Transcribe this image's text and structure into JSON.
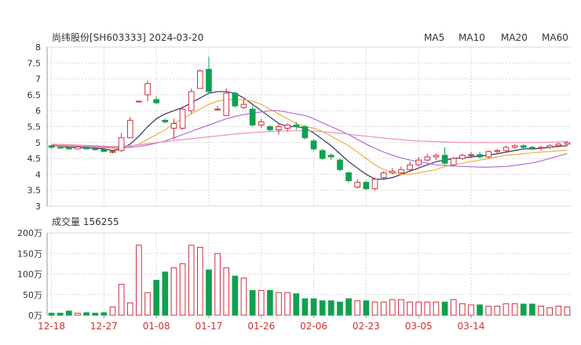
{
  "title": "尚纬股份[SH603333] 2024-03-20",
  "legend": [
    {
      "name": "MA5",
      "color": "#333366"
    },
    {
      "name": "MA10",
      "color": "#f0b040"
    },
    {
      "name": "MA20",
      "color": "#b070d8"
    },
    {
      "name": "MA60",
      "color": "#f090b8"
    }
  ],
  "volume_label": "成交量 156255",
  "colors": {
    "up": "#d03040",
    "down": "#10a050",
    "grid": "#d8d8d8",
    "axis": "#999999"
  },
  "chart_data": [
    {
      "type": "candlestick",
      "yticks": [
        "8",
        "7.5",
        "7",
        "6.5",
        "6",
        "5.5",
        "5",
        "4.5",
        "4",
        "3.5",
        "3"
      ],
      "ylim": [
        3,
        8
      ],
      "x_ticks": [
        "12-18",
        "12-27",
        "01-08",
        "01-17",
        "01-26",
        "02-06",
        "02-23",
        "03-05",
        "03-14"
      ],
      "x_tick_index": [
        0,
        6,
        12,
        18,
        24,
        30,
        36,
        42,
        48
      ],
      "candles": [
        [
          4.9,
          4.92,
          4.85,
          4.8
        ],
        [
          4.85,
          4.88,
          4.83,
          4.82
        ],
        [
          4.85,
          4.87,
          4.8,
          4.79
        ],
        [
          4.8,
          4.85,
          4.86,
          4.78
        ],
        [
          4.85,
          4.88,
          4.8,
          4.79
        ],
        [
          4.8,
          4.82,
          4.78,
          4.75
        ],
        [
          4.78,
          4.8,
          4.72,
          4.7
        ],
        [
          4.7,
          4.75,
          4.72,
          4.65
        ],
        [
          4.75,
          5.3,
          5.15,
          4.7
        ],
        [
          5.15,
          5.8,
          5.7,
          5.15
        ],
        [
          6.3,
          6.32,
          6.3,
          6.28
        ],
        [
          6.5,
          6.95,
          6.85,
          6.3
        ],
        [
          6.35,
          6.45,
          6.25,
          6.2
        ],
        [
          5.7,
          5.75,
          5.65,
          5.6
        ],
        [
          5.45,
          5.75,
          5.6,
          5.1
        ],
        [
          5.45,
          6.1,
          6.05,
          5.4
        ],
        [
          6.0,
          6.7,
          6.6,
          5.9
        ],
        [
          6.7,
          7.3,
          7.25,
          6.7
        ],
        [
          7.3,
          7.7,
          6.6,
          6.55
        ],
        [
          6.05,
          6.15,
          6.05,
          6.0
        ],
        [
          5.85,
          6.7,
          6.55,
          5.85
        ],
        [
          6.55,
          6.6,
          6.15,
          6.1
        ],
        [
          6.1,
          6.35,
          6.2,
          6.05
        ],
        [
          6.05,
          6.15,
          5.55,
          5.5
        ],
        [
          5.55,
          5.75,
          5.65,
          5.45
        ],
        [
          5.5,
          5.55,
          5.4,
          5.35
        ],
        [
          5.4,
          5.6,
          5.5,
          5.25
        ],
        [
          5.45,
          5.6,
          5.55,
          5.35
        ],
        [
          5.55,
          5.65,
          5.5,
          5.4
        ],
        [
          5.5,
          5.55,
          5.15,
          5.1
        ],
        [
          5.05,
          5.1,
          4.8,
          4.75
        ],
        [
          4.75,
          4.8,
          4.5,
          4.45
        ],
        [
          4.6,
          4.65,
          4.55,
          4.45
        ],
        [
          4.45,
          4.5,
          4.15,
          4.1
        ],
        [
          4.05,
          4.1,
          3.8,
          3.75
        ],
        [
          3.6,
          3.85,
          3.75,
          3.55
        ],
        [
          3.75,
          3.8,
          3.55,
          3.5
        ],
        [
          3.55,
          3.9,
          3.85,
          3.5
        ],
        [
          3.9,
          4.1,
          4.05,
          3.85
        ],
        [
          4.05,
          4.2,
          4.1,
          4.0
        ],
        [
          4.05,
          4.25,
          4.15,
          4.0
        ],
        [
          4.15,
          4.4,
          4.3,
          4.1
        ],
        [
          4.3,
          4.55,
          4.45,
          4.25
        ],
        [
          4.45,
          4.65,
          4.55,
          4.4
        ],
        [
          4.55,
          4.65,
          4.6,
          4.45
        ],
        [
          4.6,
          4.85,
          4.35,
          4.3
        ],
        [
          4.3,
          4.55,
          4.5,
          4.25
        ],
        [
          4.5,
          4.65,
          4.6,
          4.45
        ],
        [
          4.6,
          4.7,
          4.62,
          4.5
        ],
        [
          4.62,
          4.7,
          4.55,
          4.5
        ],
        [
          4.55,
          4.75,
          4.72,
          4.5
        ],
        [
          4.72,
          4.8,
          4.75,
          4.65
        ],
        [
          4.75,
          4.9,
          4.85,
          4.7
        ],
        [
          4.85,
          4.95,
          4.9,
          4.8
        ],
        [
          4.9,
          4.95,
          4.85,
          4.8
        ],
        [
          4.85,
          4.9,
          4.82,
          4.78
        ],
        [
          4.82,
          4.9,
          4.85,
          4.75
        ],
        [
          4.85,
          4.95,
          4.9,
          4.8
        ],
        [
          4.9,
          5.0,
          4.95,
          4.85
        ],
        [
          4.95,
          5.05,
          5.0,
          4.9
        ]
      ],
      "ma5": [
        4.9,
        4.88,
        4.85,
        4.84,
        4.83,
        4.82,
        4.8,
        4.75,
        4.8,
        4.95,
        5.2,
        5.5,
        5.75,
        5.9,
        6.0,
        6.1,
        6.25,
        6.4,
        6.55,
        6.6,
        6.6,
        6.55,
        6.4,
        6.2,
        6.0,
        5.8,
        5.6,
        5.5,
        5.5,
        5.45,
        5.3,
        5.1,
        4.9,
        4.65,
        4.4,
        4.2,
        4.0,
        3.85,
        3.85,
        3.9,
        4.0,
        4.1,
        4.2,
        4.3,
        4.4,
        4.45,
        4.5,
        4.52,
        4.55,
        4.58,
        4.6,
        4.65,
        4.7,
        4.75,
        4.8,
        4.8,
        4.82,
        4.85,
        4.88,
        4.9
      ],
      "ma10": [
        4.9,
        4.89,
        4.88,
        4.87,
        4.86,
        4.85,
        4.84,
        4.82,
        4.82,
        4.88,
        4.95,
        5.1,
        5.25,
        5.4,
        5.6,
        5.75,
        5.9,
        6.05,
        6.2,
        6.3,
        6.35,
        6.35,
        6.35,
        6.3,
        6.2,
        6.05,
        5.9,
        5.75,
        5.6,
        5.5,
        5.45,
        5.35,
        5.2,
        5.05,
        4.9,
        4.7,
        4.5,
        4.3,
        4.15,
        4.05,
        4.0,
        4.0,
        4.05,
        4.1,
        4.15,
        4.25,
        4.3,
        4.35,
        4.4,
        4.45,
        4.5,
        4.55,
        4.6,
        4.62,
        4.65,
        4.68,
        4.7,
        4.72,
        4.74,
        4.76
      ],
      "ma20": [
        4.92,
        4.91,
        4.9,
        4.89,
        4.88,
        4.87,
        4.86,
        4.85,
        4.84,
        4.85,
        4.88,
        4.92,
        4.98,
        5.05,
        5.15,
        5.25,
        5.35,
        5.45,
        5.55,
        5.65,
        5.75,
        5.82,
        5.88,
        5.92,
        5.96,
        6.0,
        6.0,
        5.95,
        5.9,
        5.85,
        5.75,
        5.62,
        5.5,
        5.38,
        5.25,
        5.1,
        4.95,
        4.82,
        4.7,
        4.6,
        4.52,
        4.45,
        4.4,
        4.35,
        4.3,
        4.28,
        4.26,
        4.25,
        4.24,
        4.23,
        4.23,
        4.24,
        4.25,
        4.28,
        4.32,
        4.36,
        4.42,
        4.5,
        4.58,
        4.65
      ],
      "ma60": [
        4.95,
        4.94,
        4.93,
        4.92,
        4.91,
        4.9,
        4.89,
        4.88,
        4.88,
        4.9,
        4.93,
        4.96,
        5.0,
        5.03,
        5.06,
        5.09,
        5.12,
        5.15,
        5.18,
        5.21,
        5.24,
        5.27,
        5.29,
        5.31,
        5.33,
        5.35,
        5.36,
        5.37,
        5.37,
        5.37,
        5.36,
        5.34,
        5.32,
        5.29,
        5.26,
        5.23,
        5.2,
        5.17,
        5.14,
        5.11,
        5.09,
        5.07,
        5.05,
        5.04,
        5.03,
        5.02,
        5.01,
        5.0,
        5.0,
        5.0,
        5.0,
        5.0,
        5.0,
        5.0,
        5.0,
        5.0,
        5.0,
        5.01,
        5.02,
        5.03
      ]
    },
    {
      "type": "bar",
      "yticks": [
        "200万",
        "150万",
        "100万",
        "50万",
        "0万"
      ],
      "ylim": [
        0,
        200
      ],
      "values": [
        5,
        5,
        10,
        5,
        6,
        5,
        6,
        20,
        75,
        30,
        170,
        55,
        85,
        105,
        115,
        125,
        170,
        165,
        110,
        150,
        115,
        95,
        90,
        60,
        60,
        60,
        55,
        55,
        52,
        40,
        40,
        35,
        35,
        32,
        40,
        35,
        35,
        32,
        32,
        38,
        38,
        32,
        32,
        32,
        32,
        32,
        38,
        28,
        25,
        25,
        22,
        22,
        28,
        28,
        27,
        27,
        22,
        18,
        22,
        20
      ]
    }
  ]
}
